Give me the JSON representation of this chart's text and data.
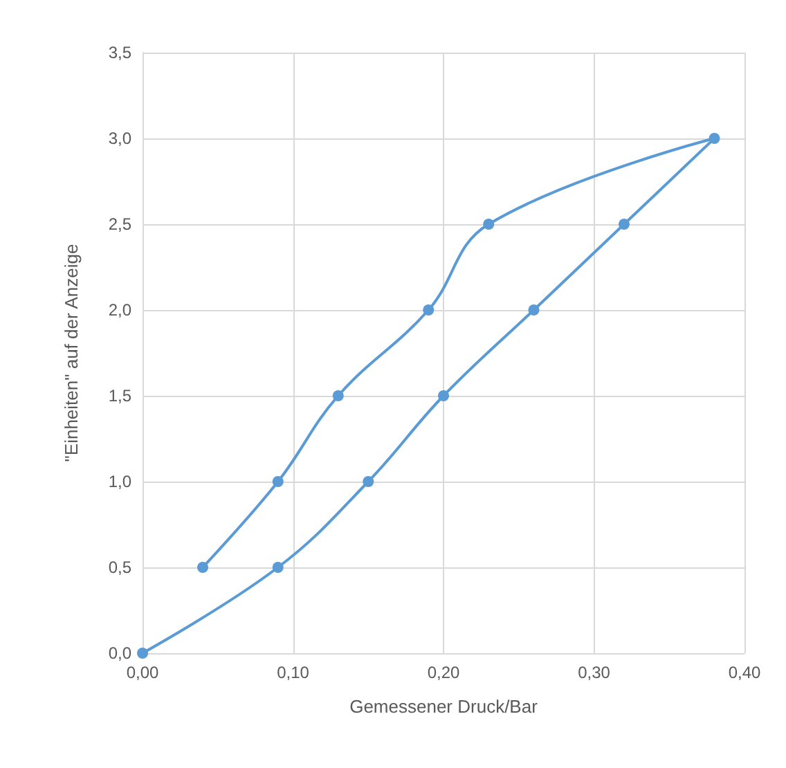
{
  "chart_data": {
    "type": "line",
    "xlabel": "Gemessener Druck/Bar",
    "ylabel": "\"Einheiten\" auf der Anzeige",
    "x": [
      0,
      0.09,
      0.15,
      0.2,
      0.26,
      0.32,
      0.38,
      0.23,
      0.19,
      0.13,
      0.09,
      0.04
    ],
    "series": [
      {
        "color": "#5b9bd5",
        "values": [
          0,
          0.5,
          1,
          1.5,
          2,
          2.5,
          3,
          2.5,
          2,
          1.5,
          1,
          0.5
        ]
      }
    ],
    "xlim": [
      0,
      0.4
    ],
    "xticks": [
      {
        "value": 0,
        "label": "0,00"
      },
      {
        "value": 0.1,
        "label": "0,10"
      },
      {
        "value": 0.2,
        "label": "0,20"
      },
      {
        "value": 0.3,
        "label": "0,30"
      },
      {
        "value": 0.4,
        "label": "0,40"
      }
    ],
    "ylim": [
      0,
      3.5
    ],
    "yticks": [
      {
        "value": 0,
        "label": "0,0"
      },
      {
        "value": 0.5,
        "label": "0,5"
      },
      {
        "value": 1,
        "label": "1,0"
      },
      {
        "value": 1.5,
        "label": "1,5"
      },
      {
        "value": 2,
        "label": "2,0"
      },
      {
        "value": 2.5,
        "label": "2,5"
      },
      {
        "value": 3,
        "label": "3,0"
      },
      {
        "value": 3.5,
        "label": "3,5"
      }
    ],
    "grid": true,
    "marker": "circle",
    "line_style": "solid"
  }
}
